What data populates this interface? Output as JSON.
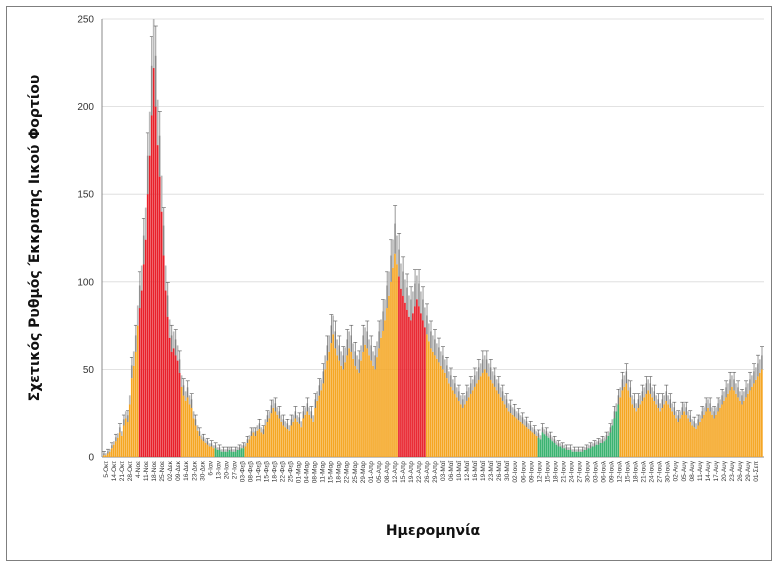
{
  "chart_data": {
    "type": "bar",
    "xlabel": "Ημερομηνία",
    "ylabel": "Σχετικός Ρυθμός Έκκρισης Ιικού Φορτίου",
    "ylim": [
      0,
      250
    ],
    "yticks": [
      0,
      50,
      100,
      150,
      200,
      250
    ],
    "grid": true,
    "legend": "none",
    "colors": {
      "normal": "#f5a623",
      "high": "#e8202a",
      "low": "#3cb371",
      "error": "#555555",
      "spread": "#b9b9b9",
      "grid": "#d9d9d9"
    },
    "tick_labels": [
      "5-Οκτ",
      "14-Οκτ",
      "21-Οκτ",
      "28-Οκτ",
      "4-Νοε",
      "11-Νοε",
      "18-Νοε",
      "25-Νοε",
      "02-Δεκ",
      "09-Δεκ",
      "16-Δεκ",
      "23-Δεκ",
      "30-Δεκ",
      "6-Ιαν",
      "13-Ιαν",
      "20-Ιαν",
      "27-Ιαν",
      "03-Φεβ",
      "08-Φεβ",
      "11-Φεβ",
      "15-Φεβ",
      "18-Φεβ",
      "22-Φεβ",
      "25-Φεβ",
      "01-Μαρ",
      "04-Μαρ",
      "08-Μαρ",
      "11-Μαρ",
      "15-Μαρ",
      "18-Μαρ",
      "22-Μαρ",
      "25-Μαρ",
      "29-Μαρ",
      "01-Απρ",
      "05-Απρ",
      "08-Απρ",
      "12-Απρ",
      "15-Απρ",
      "19-Απρ",
      "22-Απρ",
      "26-Απρ",
      "29-Απρ",
      "03-Μαΐ",
      "06-Μαΐ",
      "10-Μαΐ",
      "12-Μαΐ",
      "16-Μαΐ",
      "19-Μαΐ",
      "23-Μαΐ",
      "26-Μαΐ",
      "30-Μαΐ",
      "02-Ιουν",
      "06-Ιουν",
      "09-Ιουν",
      "12-Ιουν",
      "15-Ιουν",
      "18-Ιουν",
      "21-Ιουν",
      "24-Ιουν",
      "27-Ιουν",
      "30-Ιουν",
      "03-Ιουλ",
      "06-Ιουλ",
      "09-Ιουλ",
      "12-Ιουλ",
      "15-Ιουλ",
      "18-Ιουλ",
      "21-Ιουλ",
      "24-Ιουλ",
      "27-Ιουλ",
      "30-Ιουλ",
      "02-Αυγ",
      "05-Αυγ",
      "08-Αυγ",
      "11-Αυγ",
      "14-Αυγ",
      "17-Αυγ",
      "20-Αυγ",
      "23-Αυγ",
      "26-Αυγ",
      "29-Αυγ",
      "01-Σεπ"
    ],
    "values": [
      1,
      1,
      2,
      3,
      5,
      7,
      9,
      11,
      14,
      12,
      18,
      22,
      20,
      30,
      45,
      52,
      60,
      75,
      85,
      95,
      110,
      124,
      150,
      172,
      195,
      222,
      200,
      178,
      160,
      140,
      115,
      95,
      80,
      68,
      60,
      62,
      58,
      55,
      48,
      40,
      35,
      32,
      34,
      30,
      28,
      22,
      18,
      15,
      12,
      10,
      9,
      8,
      7,
      6,
      6,
      5,
      5,
      4,
      4,
      3,
      3,
      3,
      3,
      4,
      3,
      3,
      3,
      4,
      4,
      5,
      5,
      6,
      8,
      10,
      12,
      14,
      12,
      15,
      16,
      14,
      13,
      18,
      20,
      22,
      25,
      28,
      26,
      24,
      22,
      20,
      18,
      17,
      16,
      15,
      18,
      20,
      22,
      20,
      19,
      17,
      22,
      24,
      26,
      24,
      22,
      20,
      28,
      32,
      35,
      38,
      42,
      50,
      55,
      60,
      65,
      70,
      62,
      58,
      55,
      52,
      50,
      54,
      58,
      62,
      60,
      56,
      52,
      50,
      48,
      55,
      60,
      64,
      62,
      58,
      55,
      52,
      50,
      57,
      62,
      68,
      72,
      78,
      85,
      92,
      100,
      108,
      116,
      110,
      103,
      96,
      92,
      88,
      84,
      80,
      78,
      82,
      86,
      90,
      86,
      82,
      78,
      74,
      70,
      66,
      62,
      60,
      58,
      56,
      54,
      52,
      50,
      48,
      45,
      42,
      40,
      38,
      36,
      34,
      32,
      30,
      28,
      30,
      32,
      34,
      36,
      38,
      40,
      42,
      44,
      46,
      48,
      50,
      48,
      46,
      44,
      42,
      40,
      38,
      36,
      34,
      32,
      30,
      28,
      26,
      25,
      24,
      23,
      22,
      21,
      20,
      19,
      18,
      17,
      16,
      15,
      14,
      13,
      12,
      11,
      10,
      14,
      13,
      12,
      11,
      10,
      9,
      8,
      7,
      6,
      6,
      5,
      5,
      4,
      4,
      4,
      3,
      3,
      3,
      3,
      3,
      3,
      4,
      4,
      5,
      5,
      6,
      6,
      7,
      7,
      8,
      8,
      9,
      10,
      12,
      14,
      18,
      22,
      26,
      30,
      34,
      38,
      40,
      42,
      38,
      34,
      30,
      28,
      26,
      28,
      30,
      32,
      34,
      36,
      38,
      36,
      34,
      32,
      30,
      28,
      26,
      28,
      30,
      32,
      30,
      28,
      26,
      24,
      22,
      20,
      22,
      24,
      26,
      24,
      22,
      20,
      18,
      17,
      16,
      18,
      20,
      22,
      24,
      26,
      28,
      26,
      24,
      22,
      24,
      26,
      28,
      30,
      32,
      34,
      36,
      38,
      40,
      38,
      36,
      34,
      32,
      30,
      32,
      34,
      36,
      38,
      40,
      42,
      44,
      46,
      48,
      50
    ]
  }
}
